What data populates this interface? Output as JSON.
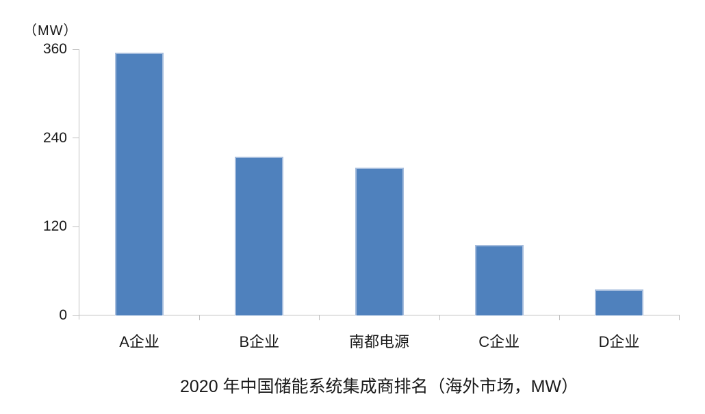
{
  "chart_data": {
    "type": "bar",
    "title": "2020 年中国储能系统集成商排名（海外市场，MW）",
    "ylabel": "（MW）",
    "xlabel": "",
    "categories": [
      "A企业",
      "B企业",
      "南都电源",
      "C企业",
      "D企业"
    ],
    "values": [
      355,
      215,
      200,
      95,
      35
    ],
    "yticks": [
      0,
      120,
      240,
      360
    ],
    "ylim": [
      0,
      360
    ],
    "grid": false,
    "legend": false,
    "bar_color": "#4f81bd",
    "bar_border_color": "#a6bddd",
    "axis_color": "#bfbfbf",
    "text_color": "#1a1a1a",
    "background_color": "#ffffff"
  }
}
